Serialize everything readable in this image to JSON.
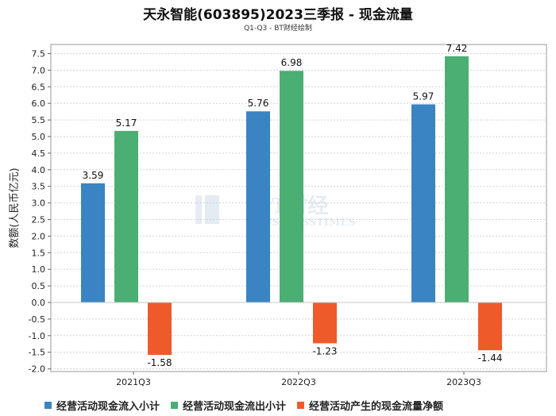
{
  "chart_data": {
    "type": "bar",
    "title": "天永智能(603895)2023三季报 - 现金流量",
    "subtitle": "Q1-Q3 - BT财经绘制",
    "ylabel": "数额(人民币亿元)",
    "xlabel": "",
    "ylim": [
      -2.0,
      7.5
    ],
    "ytick_step": 0.5,
    "categories": [
      "2021Q3",
      "2022Q3",
      "2023Q3"
    ],
    "series": [
      {
        "name": "经营活动现金流入小计",
        "color": "#3a84c4",
        "values": [
          3.59,
          5.76,
          5.97
        ]
      },
      {
        "name": "经营活动现金流出小计",
        "color": "#4bae73",
        "values": [
          5.17,
          6.98,
          7.42
        ]
      },
      {
        "name": "经营活动产生的现金流量净额",
        "color": "#ee5a2a",
        "values": [
          -1.58,
          -1.23,
          -1.44
        ]
      }
    ],
    "watermark": {
      "mark": "BT财经",
      "sub": "BUSINESSTIMES"
    }
  }
}
